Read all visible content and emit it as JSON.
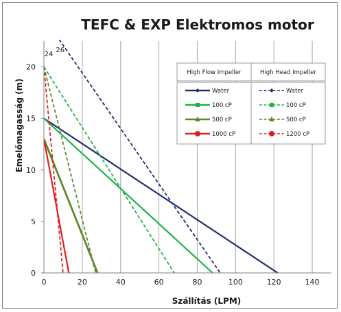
{
  "chart_data": {
    "type": "line",
    "title": "TEFC & EXP Elektromos motor",
    "xlabel": "Szállítás (LPM)",
    "ylabel": "Emelőmagasság (m)",
    "xlim": [
      0,
      150
    ],
    "ylim": [
      0,
      22.5
    ],
    "xticks": [
      0,
      20,
      40,
      60,
      80,
      100,
      120,
      140
    ],
    "yticks": [
      0,
      5,
      10,
      15,
      20
    ],
    "grid": "vertical",
    "legend_placement": "top-right",
    "legend_headers": [
      "High Flow Impeller",
      "High Head Impeller"
    ],
    "annotations": [
      {
        "text": "24",
        "x": 2.5,
        "y": 21.3
      },
      {
        "text": "26",
        "x": 8.5,
        "y": 21.7
      }
    ],
    "series": [
      {
        "name": "Water",
        "group": "High Flow Impeller",
        "color": "#1f2d6b",
        "dash": "solid",
        "marker": "diamond",
        "points": [
          [
            0,
            15
          ],
          [
            122,
            0
          ]
        ]
      },
      {
        "name": "100 cP",
        "group": "High Flow Impeller",
        "color": "#1fb24a",
        "dash": "solid",
        "marker": "square",
        "points": [
          [
            0,
            15
          ],
          [
            88,
            0
          ]
        ]
      },
      {
        "name": "500 cP",
        "group": "High Flow Impeller",
        "color": "#5a8a2e",
        "dash": "solid",
        "marker": "triangle",
        "points": [
          [
            0,
            13
          ],
          [
            28,
            0
          ]
        ]
      },
      {
        "name": "1000 cP",
        "group": "High Flow Impeller",
        "color": "#e02020",
        "dash": "solid",
        "marker": "circle",
        "points": [
          [
            0,
            13
          ],
          [
            13,
            0
          ]
        ]
      },
      {
        "name": "Water",
        "group": "High Head Impeller",
        "color": "#1f2d6b",
        "dash": "dashed",
        "marker": "diamond",
        "points": [
          [
            3,
            24
          ],
          [
            92,
            0
          ]
        ]
      },
      {
        "name": "100 cP",
        "group": "High Head Impeller",
        "color": "#1fb24a",
        "dash": "dashed",
        "marker": "square",
        "points": [
          [
            0,
            20
          ],
          [
            68,
            0
          ]
        ]
      },
      {
        "name": "500 cP",
        "group": "High Head Impeller",
        "color": "#5a8a2e",
        "dash": "dashed",
        "marker": "triangle",
        "points": [
          [
            0,
            20
          ],
          [
            27,
            0
          ]
        ]
      },
      {
        "name": "1200 cP",
        "group": "High Head Impeller",
        "color": "#e02020",
        "dash": "dashed",
        "marker": "circle",
        "points": [
          [
            0,
            20
          ],
          [
            10,
            0
          ]
        ]
      }
    ]
  }
}
